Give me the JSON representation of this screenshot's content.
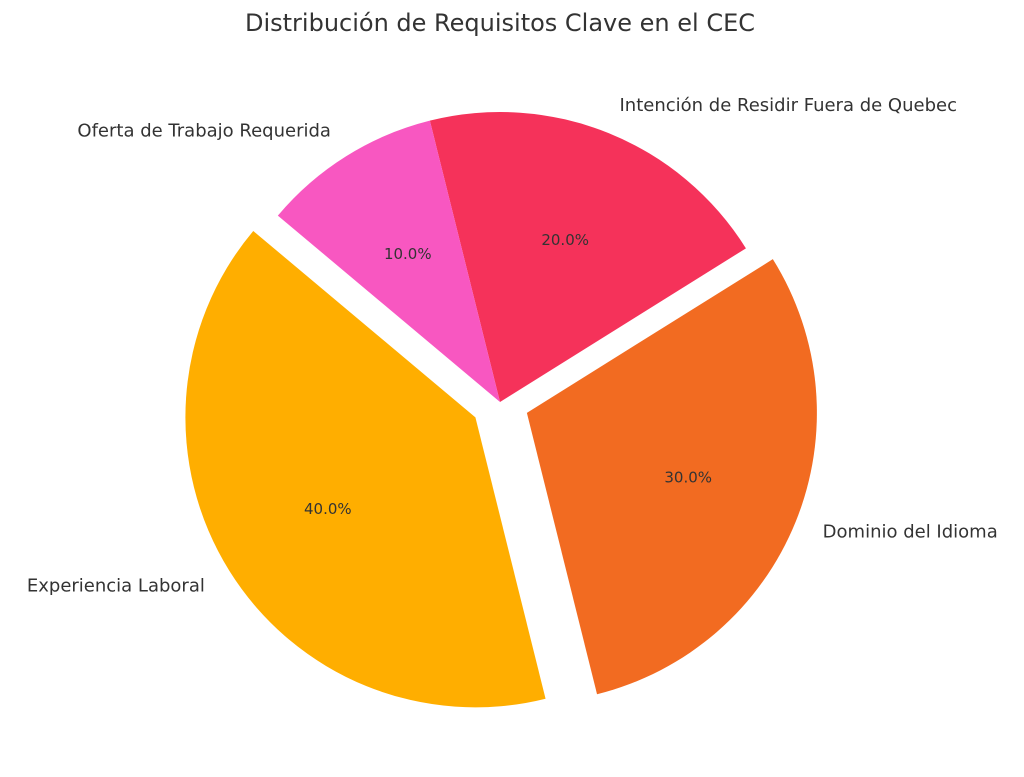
{
  "chart_data": {
    "type": "pie",
    "title": "Distribución de Requisitos Clave en el CEC",
    "categories": [
      "Experiencia Laboral",
      "Dominio del Idioma",
      "Intención de Residir Fuera de Quebec",
      "Oferta de Trabajo Requerida"
    ],
    "values": [
      40,
      30,
      20,
      10
    ],
    "value_labels": [
      "40.0%",
      "30.0%",
      "20.0%",
      "10.0%"
    ],
    "colors": [
      "#ffae00",
      "#f26b21",
      "#f5325a",
      "#f857c1"
    ],
    "explode": [
      0.1,
      0.1,
      0,
      0
    ]
  }
}
